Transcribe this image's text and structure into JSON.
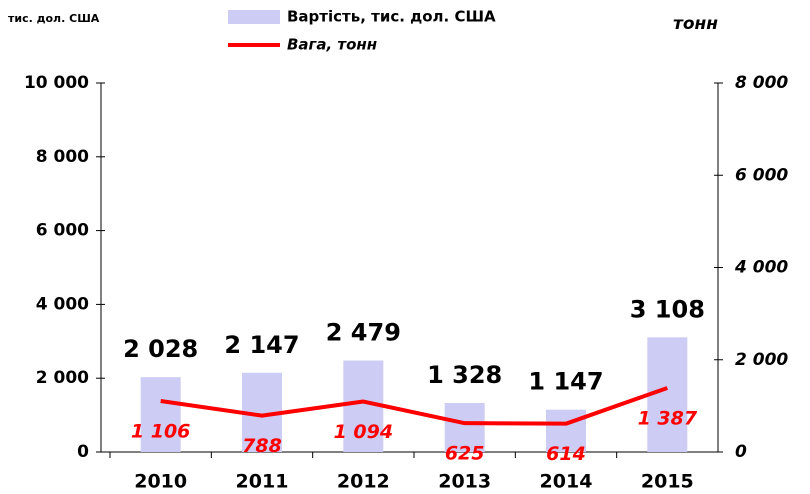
{
  "chart_data": {
    "type": "bar",
    "y_label": "тис. дол. США",
    "y2_label": "тонн",
    "categories": [
      "2010",
      "2011",
      "2012",
      "2013",
      "2014",
      "2015"
    ],
    "series": [
      {
        "name": "Вартість, тис. дол. США",
        "type": "bar",
        "color": "#ccccf5",
        "values": [
          2028,
          2147,
          2479,
          1328,
          1147,
          3108
        ],
        "value_labels": [
          "2 028",
          "2 147",
          "2 479",
          "1 328",
          "1 147",
          "3 108"
        ]
      },
      {
        "name": "Вага, тонн",
        "type": "line",
        "axis": "y2",
        "color": "#ff0000",
        "values": [
          1106,
          788,
          1094,
          625,
          614,
          1387
        ],
        "value_labels": [
          "1 106",
          "788",
          "1 094",
          "625",
          "614",
          "1 387"
        ]
      }
    ],
    "ylim": [
      0,
      10000
    ],
    "yticks": [
      0,
      {
        "value": 2000,
        "label": "2 000"
      },
      {
        "value": 4000,
        "label": "4 000"
      },
      {
        "value": 6000,
        "label": "6 000"
      },
      {
        "value": 8000,
        "label": "8 000"
      },
      {
        "value": 10000,
        "label": "10 000"
      }
    ],
    "y2lim": [
      0,
      8000
    ],
    "y2ticks": [
      0,
      {
        "value": 2000,
        "label": "2 000"
      },
      {
        "value": 4000,
        "label": "4 000"
      },
      {
        "value": 6000,
        "label": "6 000"
      },
      {
        "value": 8000,
        "label": "8 000"
      }
    ],
    "legend": "top"
  }
}
